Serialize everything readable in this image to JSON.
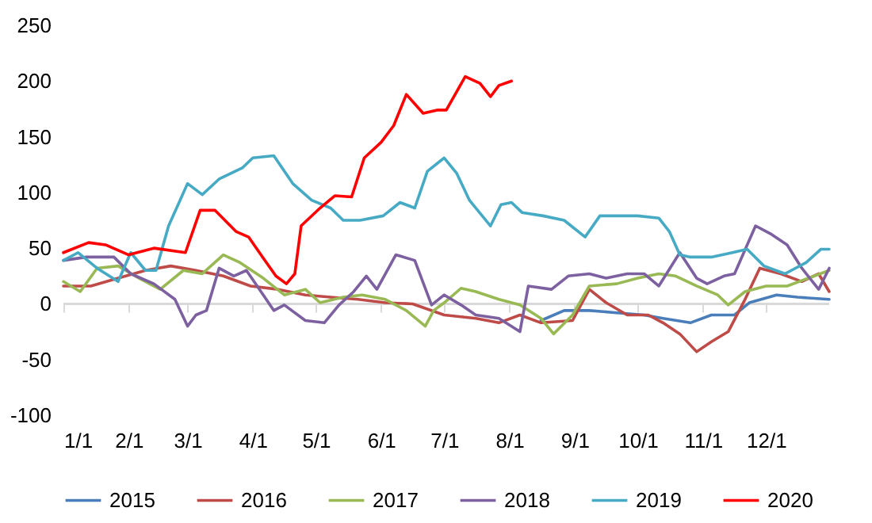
{
  "chart_data": {
    "type": "line",
    "ylim": [
      -100,
      250
    ],
    "yticks": [
      -100,
      -50,
      0,
      50,
      100,
      150,
      200,
      250
    ],
    "xlim": [
      "--01-01",
      "--12-31"
    ],
    "xticks": [
      {
        "value": "--01-01",
        "label": "1/1"
      },
      {
        "value": "--02-01",
        "label": "2/1"
      },
      {
        "value": "--03-01",
        "label": "3/1"
      },
      {
        "value": "--04-01",
        "label": "4/1"
      },
      {
        "value": "--05-01",
        "label": "5/1"
      },
      {
        "value": "--06-01",
        "label": "6/1"
      },
      {
        "value": "--07-01",
        "label": "7/1"
      },
      {
        "value": "--08-01",
        "label": "8/1"
      },
      {
        "value": "--09-01",
        "label": "9/1"
      },
      {
        "value": "--10-01",
        "label": "10/1"
      },
      {
        "value": "--11-01",
        "label": "11/1"
      },
      {
        "value": "--12-01",
        "label": "12/1"
      }
    ],
    "grid": false,
    "ref_lines": [
      {
        "axis": "y",
        "value": 0,
        "color": "#d9d9d9",
        "line_style": "solid"
      }
    ],
    "legend": "bottom",
    "marker": "none",
    "line_style": "solid",
    "series": [
      {
        "name": "2015",
        "color": "#4a7ebb",
        "x": [
          "--08-16",
          "--08-27",
          "--09-08",
          "--09-21",
          "--10-04",
          "--10-13",
          "--10-26",
          "--11-05",
          "--11-16",
          "--11-23",
          "--12-06",
          "--12-16",
          "--12-31"
        ],
        "values": [
          -15,
          -6,
          -6,
          -8,
          -10,
          -13,
          -17,
          -10,
          -10,
          1,
          8,
          6,
          4
        ]
      },
      {
        "name": "2016",
        "color": "#be4b48",
        "x": [
          "--01-01",
          "--01-14",
          "--01-27",
          "--02-09",
          "--02-21",
          "--03-05",
          "--03-18",
          "--03-31",
          "--04-13",
          "--04-26",
          "--05-08",
          "--05-21",
          "--06-03",
          "--06-16",
          "--07-01",
          "--07-16",
          "--07-27",
          "--08-06",
          "--08-16",
          "--08-31",
          "--09-08",
          "--09-16",
          "--09-26",
          "--10-06",
          "--10-13",
          "--10-21",
          "--10-29",
          "--11-05",
          "--11-13",
          "--11-21",
          "--11-28",
          "--12-08",
          "--12-18",
          "--12-26",
          "--12-31"
        ],
        "values": [
          16,
          16,
          23,
          30,
          34,
          30,
          25,
          16,
          13,
          8,
          6,
          4,
          1,
          0,
          -10,
          -13,
          -17,
          -10,
          -17,
          -15,
          13,
          1,
          -10,
          -10,
          -17,
          -27,
          -43,
          -34,
          -25,
          4,
          32,
          27,
          20,
          27,
          11
        ]
      },
      {
        "name": "2017",
        "color": "#98b954",
        "x": [
          "--01-01",
          "--01-09",
          "--01-17",
          "--01-27",
          "--02-06",
          "--02-16",
          "--02-27",
          "--03-08",
          "--03-18",
          "--03-26",
          "--04-06",
          "--04-16",
          "--04-26",
          "--05-03",
          "--05-14",
          "--05-23",
          "--06-03",
          "--06-13",
          "--06-22",
          "--06-26",
          "--07-01",
          "--07-09",
          "--07-16",
          "--07-27",
          "--08-06",
          "--08-16",
          "--08-22",
          "--08-31",
          "--09-08",
          "--09-21",
          "--10-01",
          "--10-11",
          "--10-19",
          "--10-29",
          "--11-08",
          "--11-13",
          "--11-21",
          "--12-01",
          "--12-11",
          "--12-21",
          "--12-31"
        ],
        "values": [
          20,
          11,
          32,
          34,
          23,
          13,
          30,
          27,
          44,
          37,
          23,
          8,
          13,
          1,
          6,
          8,
          4,
          -6,
          -20,
          -6,
          1,
          14,
          11,
          4,
          -1,
          -13,
          -27,
          -10,
          16,
          18,
          23,
          27,
          25,
          16,
          8,
          -1,
          11,
          16,
          16,
          23,
          30
        ]
      },
      {
        "name": "2018",
        "color": "#7d60a0",
        "x": [
          "--01-01",
          "--01-12",
          "--01-25",
          "--02-02",
          "--02-13",
          "--02-23",
          "--03-01",
          "--03-05",
          "--03-10",
          "--03-16",
          "--03-23",
          "--03-29",
          "--04-06",
          "--04-11",
          "--04-16",
          "--04-26",
          "--05-05",
          "--05-12",
          "--05-19",
          "--05-25",
          "--05-30",
          "--06-08",
          "--06-17",
          "--06-25",
          "--07-01",
          "--07-09",
          "--07-16",
          "--07-27",
          "--08-06",
          "--08-10",
          "--08-21",
          "--08-29",
          "--09-08",
          "--09-16",
          "--09-26",
          "--10-04",
          "--10-11",
          "--10-21",
          "--10-29",
          "--11-03",
          "--11-11",
          "--11-16",
          "--11-26",
          "--12-03",
          "--12-11",
          "--12-18",
          "--12-26",
          "--12-31"
        ],
        "values": [
          39,
          42,
          42,
          27,
          18,
          4,
          -20,
          -10,
          -6,
          32,
          25,
          30,
          8,
          -6,
          -1,
          -15,
          -17,
          -1,
          11,
          25,
          13,
          44,
          39,
          -1,
          8,
          -1,
          -10,
          -13,
          -25,
          16,
          13,
          25,
          27,
          23,
          27,
          27,
          16,
          46,
          23,
          18,
          25,
          27,
          70,
          63,
          53,
          32,
          13,
          32
        ]
      },
      {
        "name": "2019",
        "color": "#46aac5",
        "x": [
          "--01-01",
          "--01-08",
          "--01-17",
          "--01-27",
          "--02-02",
          "--02-09",
          "--02-14",
          "--02-20",
          "--03-01",
          "--03-08",
          "--03-16",
          "--03-27",
          "--04-01",
          "--04-11",
          "--04-20",
          "--04-29",
          "--05-08",
          "--05-14",
          "--05-22",
          "--06-02",
          "--06-10",
          "--06-17",
          "--06-23",
          "--07-01",
          "--07-07",
          "--07-13",
          "--07-23",
          "--07-28",
          "--08-02",
          "--08-07",
          "--08-17",
          "--08-27",
          "--09-06",
          "--09-13",
          "--09-21",
          "--10-01",
          "--10-11",
          "--10-16",
          "--10-21",
          "--10-26",
          "--11-05",
          "--11-15",
          "--11-22",
          "--11-30",
          "--12-10",
          "--12-20",
          "--12-27",
          "--12-31"
        ],
        "values": [
          39,
          46,
          32,
          20,
          46,
          30,
          30,
          70,
          108,
          98,
          112,
          122,
          131,
          133,
          108,
          93,
          86,
          75,
          75,
          79,
          91,
          86,
          119,
          131,
          117,
          93,
          70,
          89,
          91,
          82,
          79,
          75,
          60,
          79,
          79,
          79,
          77,
          65,
          44,
          42,
          42,
          46,
          49,
          34,
          27,
          37,
          49,
          49
        ]
      },
      {
        "name": "2020",
        "color": "#ff0000",
        "x": [
          "--01-01",
          "--01-13",
          "--01-21",
          "--02-01",
          "--02-13",
          "--02-28",
          "--03-07",
          "--03-14",
          "--03-24",
          "--03-30",
          "--04-06",
          "--04-12",
          "--04-17",
          "--04-21",
          "--04-24",
          "--05-03",
          "--05-10",
          "--05-18",
          "--05-24",
          "--06-01",
          "--06-07",
          "--06-13",
          "--06-21",
          "--06-28",
          "--07-02",
          "--07-11",
          "--07-18",
          "--07-23",
          "--07-27",
          "--08-02"
        ],
        "values": [
          46,
          55,
          53,
          44,
          50,
          46,
          84,
          84,
          65,
          60,
          41,
          25,
          18,
          27,
          70,
          86,
          97,
          96,
          131,
          145,
          160,
          188,
          171,
          174,
          174,
          204,
          198,
          186,
          196,
          200
        ]
      }
    ]
  }
}
